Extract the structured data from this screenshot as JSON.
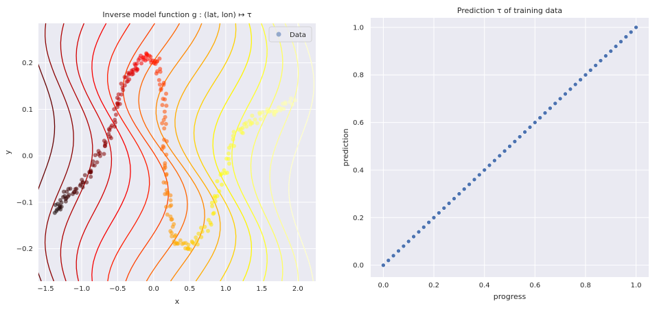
{
  "chart_data": [
    {
      "type": "scatter",
      "title": "Inverse model function g : (lat, lon) ↦ τ",
      "xlabel": "x",
      "ylabel": "y",
      "xlim": [
        -1.6,
        2.25
      ],
      "ylim": [
        -0.27,
        0.285
      ],
      "xticks": [
        "−1.5",
        "−1.0",
        "−0.5",
        "0.0",
        "0.5",
        "1.0",
        "1.5",
        "2.0"
      ],
      "xtick_values": [
        -1.5,
        -1.0,
        -0.5,
        0.0,
        0.5,
        1.0,
        1.5,
        2.0
      ],
      "yticks": [
        "−0.2",
        "−0.1",
        "0.0",
        "0.1",
        "0.2"
      ],
      "ytick_values": [
        -0.2,
        -0.1,
        0.0,
        0.1,
        0.2
      ],
      "grid": true,
      "legend": {
        "position": "top-right",
        "entries": [
          "Data"
        ]
      },
      "colormap": "hot",
      "series": [
        {
          "name": "Data",
          "color_by": "progress",
          "points": [
            {
              "x": -1.35,
              "y": -0.12,
              "t": 0.0
            },
            {
              "x": -1.25,
              "y": -0.09,
              "t": 0.05
            },
            {
              "x": -1.05,
              "y": -0.07,
              "t": 0.1
            },
            {
              "x": -0.85,
              "y": -0.03,
              "t": 0.15
            },
            {
              "x": -0.65,
              "y": 0.03,
              "t": 0.2
            },
            {
              "x": -0.5,
              "y": 0.1,
              "t": 0.25
            },
            {
              "x": -0.4,
              "y": 0.16,
              "t": 0.3
            },
            {
              "x": -0.25,
              "y": 0.19,
              "t": 0.35
            },
            {
              "x": -0.1,
              "y": 0.22,
              "t": 0.4
            },
            {
              "x": 0.05,
              "y": 0.2,
              "t": 0.45
            },
            {
              "x": 0.15,
              "y": 0.12,
              "t": 0.5
            },
            {
              "x": 0.15,
              "y": 0.0,
              "t": 0.55
            },
            {
              "x": 0.2,
              "y": -0.1,
              "t": 0.6
            },
            {
              "x": 0.3,
              "y": -0.18,
              "t": 0.65
            },
            {
              "x": 0.5,
              "y": -0.2,
              "t": 0.7
            },
            {
              "x": 0.75,
              "y": -0.15,
              "t": 0.75
            },
            {
              "x": 0.95,
              "y": -0.05,
              "t": 0.8
            },
            {
              "x": 1.15,
              "y": 0.05,
              "t": 0.85
            },
            {
              "x": 1.4,
              "y": 0.08,
              "t": 0.9
            },
            {
              "x": 1.7,
              "y": 0.1,
              "t": 0.95
            },
            {
              "x": 1.95,
              "y": 0.12,
              "t": 1.0
            }
          ]
        }
      ],
      "contours": true
    },
    {
      "type": "scatter",
      "title": "Prediction τ of training data",
      "xlabel": "progress",
      "ylabel": "prediction",
      "xlim": [
        -0.05,
        1.05
      ],
      "ylim": [
        -0.05,
        1.04
      ],
      "xticks": [
        "0.0",
        "0.2",
        "0.4",
        "0.6",
        "0.8",
        "1.0"
      ],
      "xtick_values": [
        0.0,
        0.2,
        0.4,
        0.6,
        0.8,
        1.0
      ],
      "yticks": [
        "0.0",
        "0.2",
        "0.4",
        "0.6",
        "0.8",
        "1.0"
      ],
      "ytick_values": [
        0.0,
        0.2,
        0.4,
        0.6,
        0.8,
        1.0
      ],
      "grid": true,
      "point_color": "#4c72b0",
      "series": [
        {
          "relation": "prediction ≈ progress",
          "x": [
            0.0,
            0.02,
            0.04,
            0.06,
            0.08,
            0.1,
            0.12,
            0.14,
            0.16,
            0.18,
            0.2,
            0.22,
            0.24,
            0.26,
            0.28,
            0.3,
            0.32,
            0.34,
            0.36,
            0.38,
            0.4,
            0.42,
            0.44,
            0.46,
            0.48,
            0.5,
            0.52,
            0.54,
            0.56,
            0.58,
            0.6,
            0.62,
            0.64,
            0.66,
            0.68,
            0.7,
            0.72,
            0.74,
            0.76,
            0.78,
            0.8,
            0.82,
            0.84,
            0.86,
            0.88,
            0.9,
            0.92,
            0.94,
            0.96,
            0.98,
            1.0
          ],
          "y": [
            0.0,
            0.02,
            0.04,
            0.06,
            0.08,
            0.1,
            0.12,
            0.14,
            0.16,
            0.18,
            0.2,
            0.22,
            0.24,
            0.26,
            0.28,
            0.3,
            0.32,
            0.34,
            0.36,
            0.38,
            0.4,
            0.42,
            0.44,
            0.46,
            0.48,
            0.5,
            0.52,
            0.54,
            0.56,
            0.58,
            0.6,
            0.62,
            0.64,
            0.66,
            0.68,
            0.7,
            0.72,
            0.74,
            0.76,
            0.78,
            0.8,
            0.82,
            0.84,
            0.86,
            0.88,
            0.9,
            0.92,
            0.94,
            0.96,
            0.98,
            1.0
          ]
        }
      ]
    }
  ]
}
